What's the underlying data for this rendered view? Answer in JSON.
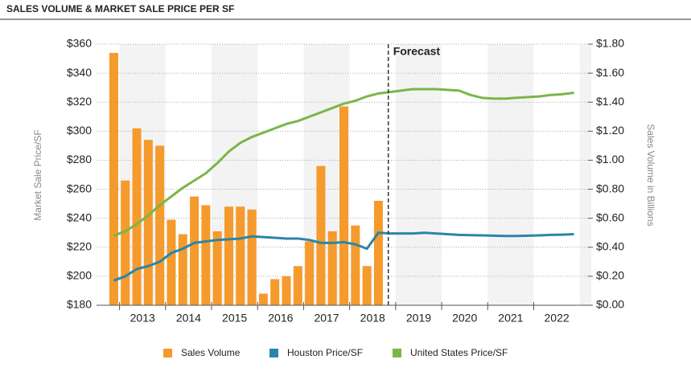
{
  "chart_data": {
    "type": "bar-line",
    "title": "SALES VOLUME & MARKET SALE PRICE PER SF",
    "ylabel": "Market Sale Price/SF",
    "y2label": "Sales Volume in Billions",
    "xlim": [
      2012.5,
      2023.25
    ],
    "xticks": [
      {
        "value": 2013.5,
        "label": "2013"
      },
      {
        "value": 2014.5,
        "label": "2014"
      },
      {
        "value": 2015.5,
        "label": "2015"
      },
      {
        "value": 2016.5,
        "label": "2016"
      },
      {
        "value": 2017.5,
        "label": "2017"
      },
      {
        "value": 2018.5,
        "label": "2018"
      },
      {
        "value": 2019.5,
        "label": "2019"
      },
      {
        "value": 2020.5,
        "label": "2020"
      },
      {
        "value": 2021.5,
        "label": "2021"
      },
      {
        "value": 2022.5,
        "label": "2022"
      }
    ],
    "ylim": [
      180,
      360
    ],
    "yticks": [
      {
        "value": 180,
        "label": "$180"
      },
      {
        "value": 200,
        "label": "$200"
      },
      {
        "value": 220,
        "label": "$220"
      },
      {
        "value": 240,
        "label": "$240"
      },
      {
        "value": 260,
        "label": "$260"
      },
      {
        "value": 280,
        "label": "$280"
      },
      {
        "value": 300,
        "label": "$300"
      },
      {
        "value": 320,
        "label": "$320"
      },
      {
        "value": 340,
        "label": "$340"
      },
      {
        "value": 360,
        "label": "$360"
      }
    ],
    "y2lim": [
      0,
      1.8
    ],
    "y2ticks": [
      {
        "value": 0,
        "label": "$0.00"
      },
      {
        "value": 0.2,
        "label": "$0.20"
      },
      {
        "value": 0.4,
        "label": "$0.40"
      },
      {
        "value": 0.6,
        "label": "$0.60"
      },
      {
        "value": 0.8,
        "label": "$0.80"
      },
      {
        "value": 1.0,
        "label": "$1.00"
      },
      {
        "value": 1.2,
        "label": "$1.20"
      },
      {
        "value": 1.4,
        "label": "$1.40"
      },
      {
        "value": 1.6,
        "label": "$1.60"
      },
      {
        "value": 1.8,
        "label": "$1.80"
      }
    ],
    "grid": true,
    "annotation": {
      "text": "Forecast",
      "x": 2018.84
    },
    "x": [
      2012.875,
      2013.125,
      2013.375,
      2013.625,
      2013.875,
      2014.125,
      2014.375,
      2014.625,
      2014.875,
      2015.125,
      2015.375,
      2015.625,
      2015.875,
      2016.125,
      2016.375,
      2016.625,
      2016.875,
      2017.125,
      2017.375,
      2017.625,
      2017.875,
      2018.125,
      2018.375,
      2018.625,
      2018.875,
      2019.125,
      2019.375,
      2019.625,
      2019.875,
      2020.125,
      2020.375,
      2020.625,
      2020.875,
      2021.125,
      2021.375,
      2021.625,
      2021.875,
      2022.125,
      2022.375,
      2022.625,
      2022.875
    ],
    "series": [
      {
        "name": "Sales Volume",
        "color": "#f59a2c",
        "kind": "bar",
        "axis": "y2",
        "x": [
          2012.875,
          2013.125,
          2013.375,
          2013.625,
          2013.875,
          2014.125,
          2014.375,
          2014.625,
          2014.875,
          2015.125,
          2015.375,
          2015.625,
          2015.875,
          2016.125,
          2016.375,
          2016.625,
          2016.875,
          2017.125,
          2017.375,
          2017.625,
          2017.875,
          2018.125,
          2018.375,
          2018.625
        ],
        "values": [
          1.74,
          0.86,
          1.22,
          1.14,
          1.1,
          0.59,
          0.49,
          0.75,
          0.69,
          0.51,
          0.68,
          0.68,
          0.66,
          0.08,
          0.18,
          0.2,
          0.27,
          0.44,
          0.96,
          0.51,
          1.37,
          0.55,
          0.27,
          0.72
        ]
      },
      {
        "name": "Houston Price/SF",
        "color": "#2a86a8",
        "kind": "line",
        "values": [
          197,
          200,
          205,
          207,
          210,
          216,
          219,
          223,
          224,
          225,
          225.5,
          226,
          227.5,
          227,
          226.5,
          226,
          226,
          225,
          223,
          223,
          223.5,
          222,
          219,
          230,
          229.5,
          229.5,
          229.5,
          230,
          229.5,
          229,
          228.5,
          228.3,
          228.2,
          228,
          227.8,
          227.8,
          228,
          228.2,
          228.5,
          228.7,
          229
        ]
      },
      {
        "name": "United States Price/SF",
        "color": "#7ab648",
        "kind": "line",
        "values": [
          228,
          231,
          236,
          242,
          249,
          255,
          261,
          266,
          271,
          278,
          286,
          292,
          296,
          299,
          302,
          305,
          307,
          310,
          313,
          316,
          319,
          321,
          324,
          326,
          327,
          328,
          329,
          329,
          329,
          328.5,
          328,
          325,
          323,
          322.5,
          322.5,
          323,
          323.5,
          324,
          325,
          325.5,
          326.5
        ]
      }
    ]
  }
}
